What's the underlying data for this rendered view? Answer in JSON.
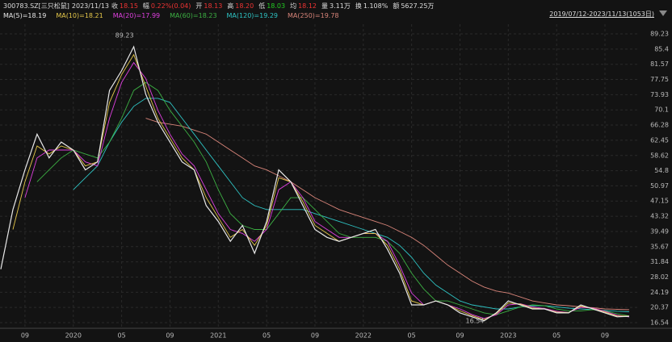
{
  "header": {
    "code": "300783.SZ[三只松鼠]",
    "date": "2023/11/13",
    "fields": [
      {
        "label": "收",
        "value": "18.15",
        "color": "#e33"
      },
      {
        "label": "幅",
        "value": "0.22%(0.04)",
        "color": "#e33"
      },
      {
        "label": "开",
        "value": "18.13",
        "color": "#e33"
      },
      {
        "label": "高",
        "value": "18.20",
        "color": "#e33"
      },
      {
        "label": "低",
        "value": "18.03",
        "color": "#2c2"
      },
      {
        "label": "均",
        "value": "18.12",
        "color": "#e33"
      },
      {
        "label": "量",
        "value": "3.11万",
        "color": "#ddd"
      },
      {
        "label": "换",
        "value": "1.108%",
        "color": "#ddd"
      },
      {
        "label": "额",
        "value": "5627.25万",
        "color": "#ddd"
      }
    ],
    "range": "2019/07/12-2023/11/13(1053日)"
  },
  "chart_data": {
    "type": "line",
    "categories": [
      null,
      null,
      "09",
      null,
      null,
      null,
      "2020",
      null,
      null,
      null,
      "05",
      null,
      null,
      null,
      "09",
      null,
      null,
      null,
      "2021",
      null,
      null,
      null,
      "05",
      null,
      null,
      null,
      "09",
      null,
      null,
      null,
      "2022",
      null,
      null,
      null,
      "05",
      null,
      null,
      null,
      "09",
      null,
      null,
      null,
      "2023",
      null,
      null,
      null,
      "05",
      null,
      null,
      null,
      "09",
      null,
      null
    ],
    "year_label_color": "#e0a030",
    "ylim": [
      16.54,
      89.23
    ],
    "yticks": [
      89.23,
      85.4,
      81.57,
      77.75,
      73.93,
      70.1,
      66.28,
      62.45,
      58.62,
      54.8,
      50.97,
      47.15,
      43.32,
      39.49,
      35.67,
      31.84,
      28.02,
      24.19,
      20.37,
      16.54
    ],
    "grid": true,
    "max_label": "89.23",
    "min_label": "16.54",
    "series": [
      {
        "name": "MA(5)",
        "legend_label": "MA(5)=18.19",
        "color": "#e8e8e8",
        "values": [
          30,
          45,
          55,
          64,
          58,
          62,
          60,
          55,
          57,
          75,
          80,
          86,
          74,
          67,
          62,
          57,
          55,
          46,
          42,
          37,
          41,
          34,
          42,
          55,
          52,
          46,
          40,
          38,
          37,
          38,
          39,
          40,
          35,
          29,
          21,
          21,
          22,
          21,
          19,
          18,
          17,
          19,
          22,
          21,
          20,
          20,
          19,
          19,
          21,
          20,
          19,
          18,
          18.15
        ]
      },
      {
        "name": "MA(10)",
        "legend_label": "MA(10)=18.21",
        "color": "#e6c84a",
        "values": [
          null,
          40,
          52,
          61,
          59,
          61,
          60,
          56,
          57,
          72,
          79,
          84,
          76,
          68,
          63,
          58,
          55,
          48,
          43,
          38,
          40,
          36,
          41,
          53,
          52,
          47,
          41,
          39,
          37,
          38,
          39,
          39,
          36,
          30,
          22,
          21,
          22,
          21,
          19.5,
          18.3,
          17.3,
          18.8,
          21.5,
          21.2,
          20.2,
          20,
          19.2,
          19.1,
          20.7,
          20.1,
          19.2,
          18.2,
          18.21
        ]
      },
      {
        "name": "MA(20)",
        "legend_label": "MA(20)=17.99",
        "color": "#e040e0",
        "values": [
          null,
          null,
          48,
          58,
          60,
          60,
          60,
          57,
          56,
          68,
          77,
          82,
          78,
          70,
          64,
          59,
          56,
          50,
          44,
          40,
          39,
          37,
          40,
          50,
          52,
          48,
          42,
          40,
          38,
          38,
          39,
          39,
          37,
          31,
          24,
          21,
          22,
          21,
          20,
          18.6,
          17.6,
          18.5,
          21,
          21.3,
          20.5,
          20.1,
          19.4,
          19.1,
          20.4,
          20.2,
          19.4,
          18.4,
          17.99
        ]
      },
      {
        "name": "MA(60)",
        "legend_label": "MA(60)=18.23",
        "color": "#3cb043",
        "values": [
          null,
          null,
          null,
          52,
          55,
          58,
          60,
          59,
          58,
          62,
          68,
          75,
          77,
          75,
          70,
          66,
          62,
          57,
          50,
          44,
          41,
          40,
          40,
          44,
          48,
          48,
          45,
          42,
          39,
          38,
          38,
          38,
          37,
          34,
          29,
          25,
          22,
          22,
          21,
          20,
          19,
          18.5,
          19.5,
          20.5,
          21,
          20.8,
          20,
          19.5,
          19.5,
          19.8,
          19.5,
          18.8,
          18.23
        ]
      },
      {
        "name": "MA(120)",
        "legend_label": "MA(120)=19.29",
        "color": "#2ec4c4",
        "values": [
          null,
          null,
          null,
          null,
          null,
          null,
          50,
          53,
          56,
          62,
          67,
          71,
          73,
          73,
          72,
          68,
          64,
          60,
          56,
          52,
          48,
          46,
          45,
          45,
          45,
          45,
          44,
          43,
          42,
          41,
          40,
          39,
          38,
          36,
          33,
          29,
          26,
          24,
          22,
          21,
          20.5,
          20,
          20,
          20.5,
          20.8,
          20.8,
          20.5,
          20.2,
          20,
          19.8,
          19.6,
          19.4,
          19.29
        ]
      },
      {
        "name": "MA(250)",
        "legend_label": "MA(250)=19.78",
        "color": "#d9857a",
        "values": [
          null,
          null,
          null,
          null,
          null,
          null,
          null,
          null,
          null,
          null,
          null,
          null,
          68,
          67,
          66.5,
          66,
          65,
          64,
          62,
          60,
          58,
          56,
          55,
          53.5,
          52,
          50,
          48,
          46.5,
          45,
          44,
          43,
          42,
          41,
          39.5,
          38,
          36,
          33.5,
          31,
          29,
          27,
          25.5,
          24.5,
          24,
          23,
          22,
          21.5,
          21,
          20.8,
          20.5,
          20.3,
          20,
          19.9,
          19.78
        ]
      }
    ]
  }
}
